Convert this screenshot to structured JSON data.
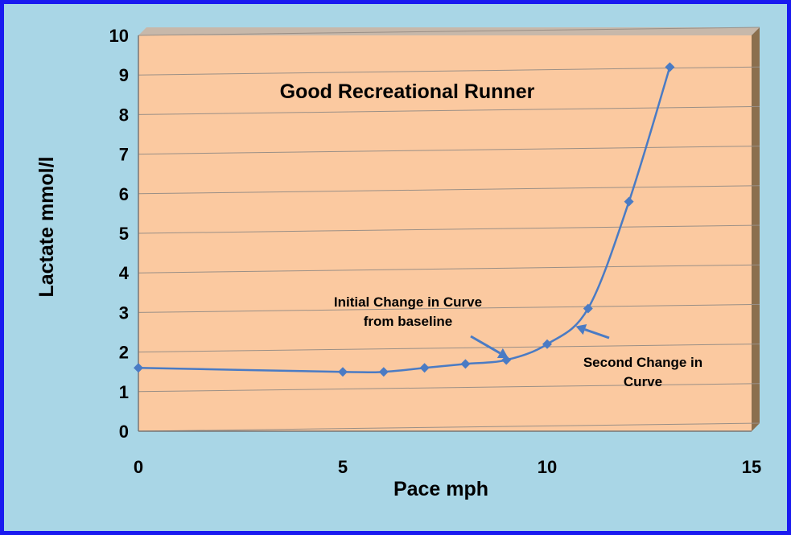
{
  "chart_data": {
    "type": "line",
    "title": "Good Recreational Runner",
    "xlabel": "Pace mph",
    "ylabel": "Lactate mmol/l",
    "xlim": [
      0,
      15
    ],
    "ylim": [
      0,
      10
    ],
    "xticks": [
      0,
      5,
      10,
      15
    ],
    "yticks": [
      0,
      1,
      2,
      3,
      4,
      5,
      6,
      7,
      8,
      9,
      10
    ],
    "grid": true,
    "series": [
      {
        "x": [
          0,
          5,
          6,
          7,
          8,
          9,
          10,
          11,
          12,
          13
        ],
        "y": [
          1.6,
          1.5,
          1.5,
          1.6,
          1.7,
          1.8,
          2.2,
          3.1,
          5.8,
          9.2
        ]
      }
    ],
    "annotations": [
      {
        "lines": [
          "Initial Change in Curve",
          "from baseline"
        ],
        "arrow_to": [
          9.05,
          1.85
        ]
      },
      {
        "lines": [
          "Second Change in",
          "Curve"
        ],
        "arrow_to": [
          10.7,
          2.65
        ]
      }
    ]
  },
  "colors": {
    "background": "#a9d6e6",
    "frame": "#1a1af0",
    "plot_area": "#fbc9a0",
    "wall_top": "#c7b8aa",
    "wall_side": "#8b6f4e",
    "line": "#4a7bc4",
    "marker": "#4a7bc4"
  }
}
